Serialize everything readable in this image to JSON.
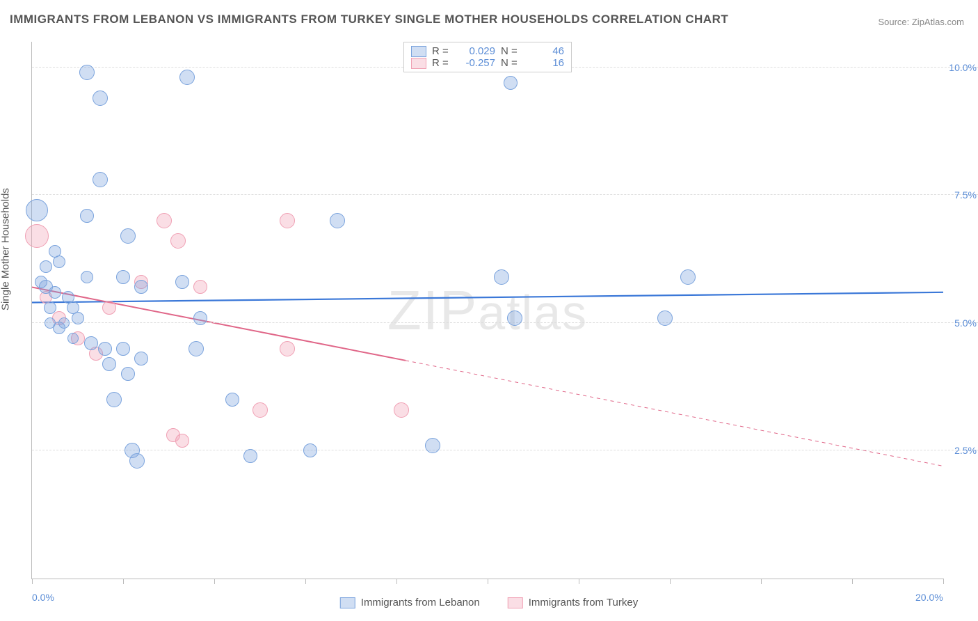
{
  "title": "IMMIGRANTS FROM LEBANON VS IMMIGRANTS FROM TURKEY SINGLE MOTHER HOUSEHOLDS CORRELATION CHART",
  "source": "Source: ZipAtlas.com",
  "watermark": "ZIPatlas",
  "ylabel": "Single Mother Households",
  "chart": {
    "type": "scatter",
    "xlim": [
      0,
      20
    ],
    "ylim": [
      0,
      10.5
    ],
    "x_ticks": [
      0,
      2,
      4,
      6,
      8,
      10,
      12,
      14,
      16,
      18,
      20
    ],
    "x_tick_labels": {
      "0": "0.0%",
      "20": "20.0%"
    },
    "y_grid": [
      2.5,
      5.0,
      7.5,
      10.0
    ],
    "y_tick_labels": {
      "2.5": "2.5%",
      "5.0": "5.0%",
      "7.5": "7.5%",
      "10.0": "10.0%"
    },
    "background_color": "#ffffff",
    "grid_color": "#dddddd",
    "axis_color": "#bbbbbb",
    "tick_label_color": "#5b8dd6"
  },
  "series": {
    "lebanon": {
      "label": "Immigrants from Lebanon",
      "fill": "rgba(120,160,220,0.35)",
      "stroke": "#7aa3dd",
      "line_color": "#3b78d8",
      "R": "0.029",
      "N": "46",
      "trend": {
        "y_at_x0": 5.4,
        "y_at_x20": 5.6,
        "solid_until_x": 20,
        "line_width": 2.2
      },
      "points": [
        {
          "x": 1.2,
          "y": 9.9,
          "r": 11
        },
        {
          "x": 3.4,
          "y": 9.8,
          "r": 11
        },
        {
          "x": 10.5,
          "y": 9.7,
          "r": 10
        },
        {
          "x": 1.5,
          "y": 9.4,
          "r": 11
        },
        {
          "x": 1.5,
          "y": 7.8,
          "r": 11
        },
        {
          "x": 1.2,
          "y": 7.1,
          "r": 10
        },
        {
          "x": 6.7,
          "y": 7.0,
          "r": 11
        },
        {
          "x": 0.1,
          "y": 7.2,
          "r": 16
        },
        {
          "x": 2.1,
          "y": 6.7,
          "r": 11
        },
        {
          "x": 10.3,
          "y": 5.9,
          "r": 11
        },
        {
          "x": 14.4,
          "y": 5.9,
          "r": 11
        },
        {
          "x": 10.6,
          "y": 5.1,
          "r": 11
        },
        {
          "x": 13.9,
          "y": 5.1,
          "r": 11
        },
        {
          "x": 0.2,
          "y": 5.8,
          "r": 9
        },
        {
          "x": 0.3,
          "y": 5.7,
          "r": 10
        },
        {
          "x": 0.5,
          "y": 5.6,
          "r": 9
        },
        {
          "x": 0.8,
          "y": 5.5,
          "r": 9
        },
        {
          "x": 0.9,
          "y": 5.3,
          "r": 9
        },
        {
          "x": 0.4,
          "y": 5.3,
          "r": 9
        },
        {
          "x": 1.0,
          "y": 5.1,
          "r": 9
        },
        {
          "x": 0.6,
          "y": 4.9,
          "r": 9
        },
        {
          "x": 2.0,
          "y": 5.9,
          "r": 10
        },
        {
          "x": 2.4,
          "y": 5.7,
          "r": 10
        },
        {
          "x": 3.3,
          "y": 5.8,
          "r": 10
        },
        {
          "x": 1.3,
          "y": 4.6,
          "r": 10
        },
        {
          "x": 1.6,
          "y": 4.5,
          "r": 10
        },
        {
          "x": 2.0,
          "y": 4.5,
          "r": 10
        },
        {
          "x": 2.4,
          "y": 4.3,
          "r": 10
        },
        {
          "x": 3.6,
          "y": 4.5,
          "r": 11
        },
        {
          "x": 1.7,
          "y": 4.2,
          "r": 10
        },
        {
          "x": 2.1,
          "y": 4.0,
          "r": 10
        },
        {
          "x": 1.8,
          "y": 3.5,
          "r": 11
        },
        {
          "x": 4.4,
          "y": 3.5,
          "r": 10
        },
        {
          "x": 2.2,
          "y": 2.5,
          "r": 11
        },
        {
          "x": 2.3,
          "y": 2.3,
          "r": 11
        },
        {
          "x": 4.8,
          "y": 2.4,
          "r": 10
        },
        {
          "x": 6.1,
          "y": 2.5,
          "r": 10
        },
        {
          "x": 8.8,
          "y": 2.6,
          "r": 11
        },
        {
          "x": 0.3,
          "y": 6.1,
          "r": 9
        },
        {
          "x": 0.4,
          "y": 5.0,
          "r": 8
        },
        {
          "x": 0.7,
          "y": 5.0,
          "r": 8
        },
        {
          "x": 0.9,
          "y": 4.7,
          "r": 8
        },
        {
          "x": 0.5,
          "y": 6.4,
          "r": 9
        },
        {
          "x": 0.6,
          "y": 6.2,
          "r": 9
        },
        {
          "x": 1.2,
          "y": 5.9,
          "r": 9
        },
        {
          "x": 3.7,
          "y": 5.1,
          "r": 10
        }
      ]
    },
    "turkey": {
      "label": "Immigrants from Turkey",
      "fill": "rgba(240,160,180,0.35)",
      "stroke": "#f0a0b4",
      "line_color": "#e06688",
      "R": "-0.257",
      "N": "16",
      "trend": {
        "y_at_x0": 5.7,
        "y_at_x20": 2.2,
        "solid_until_x": 8.2,
        "line_width": 2
      },
      "points": [
        {
          "x": 0.1,
          "y": 6.7,
          "r": 17
        },
        {
          "x": 2.9,
          "y": 7.0,
          "r": 11
        },
        {
          "x": 3.2,
          "y": 6.6,
          "r": 11
        },
        {
          "x": 5.6,
          "y": 7.0,
          "r": 11
        },
        {
          "x": 2.4,
          "y": 5.8,
          "r": 10
        },
        {
          "x": 3.7,
          "y": 5.7,
          "r": 10
        },
        {
          "x": 1.7,
          "y": 5.3,
          "r": 10
        },
        {
          "x": 0.6,
          "y": 5.1,
          "r": 10
        },
        {
          "x": 1.0,
          "y": 4.7,
          "r": 10
        },
        {
          "x": 1.4,
          "y": 4.4,
          "r": 10
        },
        {
          "x": 5.6,
          "y": 4.5,
          "r": 11
        },
        {
          "x": 5.0,
          "y": 3.3,
          "r": 11
        },
        {
          "x": 8.1,
          "y": 3.3,
          "r": 11
        },
        {
          "x": 3.1,
          "y": 2.8,
          "r": 10
        },
        {
          "x": 3.3,
          "y": 2.7,
          "r": 10
        },
        {
          "x": 0.3,
          "y": 5.5,
          "r": 9
        }
      ]
    }
  },
  "legend_labels": {
    "R": "R =",
    "N": "N ="
  }
}
